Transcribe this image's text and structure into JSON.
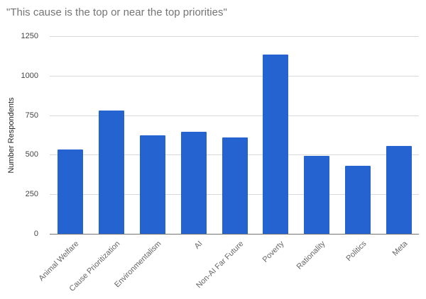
{
  "chart_data": {
    "type": "bar",
    "title": "\"This cause is the top or near the top priorities\"",
    "xlabel": "",
    "ylabel": "Number Respondents",
    "ylim": [
      0,
      1250
    ],
    "yticks": [
      0,
      250,
      500,
      750,
      1000,
      1250
    ],
    "grid": true,
    "legend": "none",
    "color": "#2563d1",
    "categories": [
      "Animal Welfare",
      "Cause Prioritization",
      "Environmentalism",
      "AI",
      "Non-AI Far Future",
      "Poverty",
      "Rationality",
      "Politics",
      "Meta"
    ],
    "values": [
      531,
      778,
      622,
      644,
      610,
      1134,
      495,
      430,
      556
    ]
  },
  "labels": {
    "title": "\"This cause is the top or near the top priorities\"",
    "ylabel": "Number Respondents",
    "yticks": [
      "0",
      "250",
      "500",
      "750",
      "1000",
      "1250"
    ],
    "x": [
      "Animal Welfare",
      "Cause Prioritization",
      "Environmentalism",
      "AI",
      "Non-AI Far Future",
      "Poverty",
      "Rationality",
      "Politics",
      "Meta"
    ]
  }
}
